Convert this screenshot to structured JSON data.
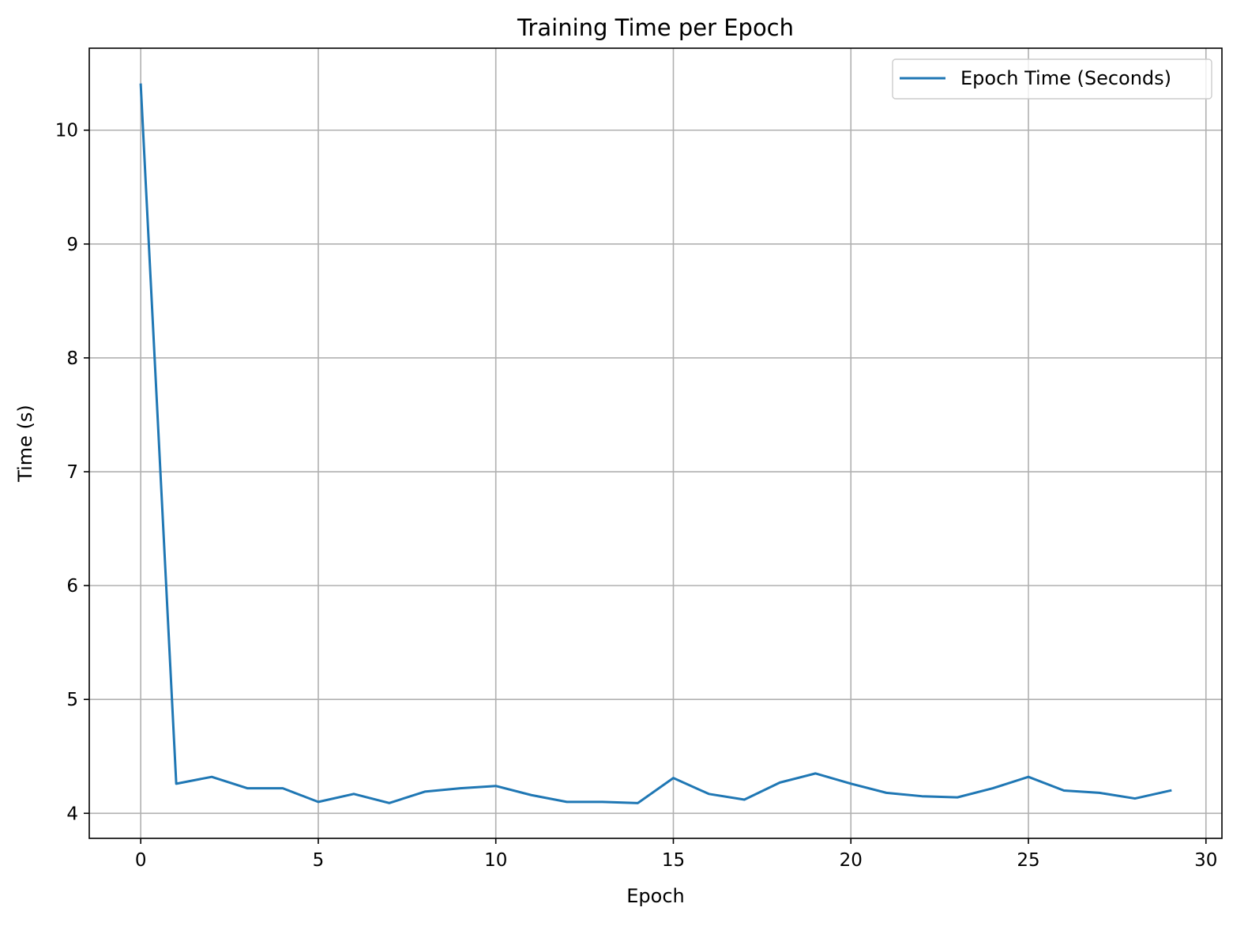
{
  "chart_data": {
    "type": "line",
    "title": "Training Time per Epoch",
    "xlabel": "Epoch",
    "ylabel": "Time (s)",
    "xlim": [
      -1.45,
      30.45
    ],
    "ylim": [
      3.78,
      10.72
    ],
    "xticks": [
      0,
      5,
      10,
      15,
      20,
      25,
      30
    ],
    "yticks": [
      4,
      5,
      6,
      7,
      8,
      9,
      10
    ],
    "grid": true,
    "legend_position": "upper right",
    "series": [
      {
        "name": "Epoch Time (Seconds)",
        "color": "#1f77b4",
        "x": [
          0,
          1,
          2,
          3,
          4,
          5,
          6,
          7,
          8,
          9,
          10,
          11,
          12,
          13,
          14,
          15,
          16,
          17,
          18,
          19,
          20,
          21,
          22,
          23,
          24,
          25,
          26,
          27,
          28,
          29
        ],
        "y": [
          10.4,
          4.26,
          4.32,
          4.22,
          4.22,
          4.1,
          4.17,
          4.09,
          4.19,
          4.22,
          4.24,
          4.16,
          4.1,
          4.1,
          4.09,
          4.31,
          4.17,
          4.12,
          4.27,
          4.35,
          4.26,
          4.18,
          4.15,
          4.14,
          4.22,
          4.32,
          4.2,
          4.18,
          4.13,
          4.2
        ]
      }
    ]
  }
}
